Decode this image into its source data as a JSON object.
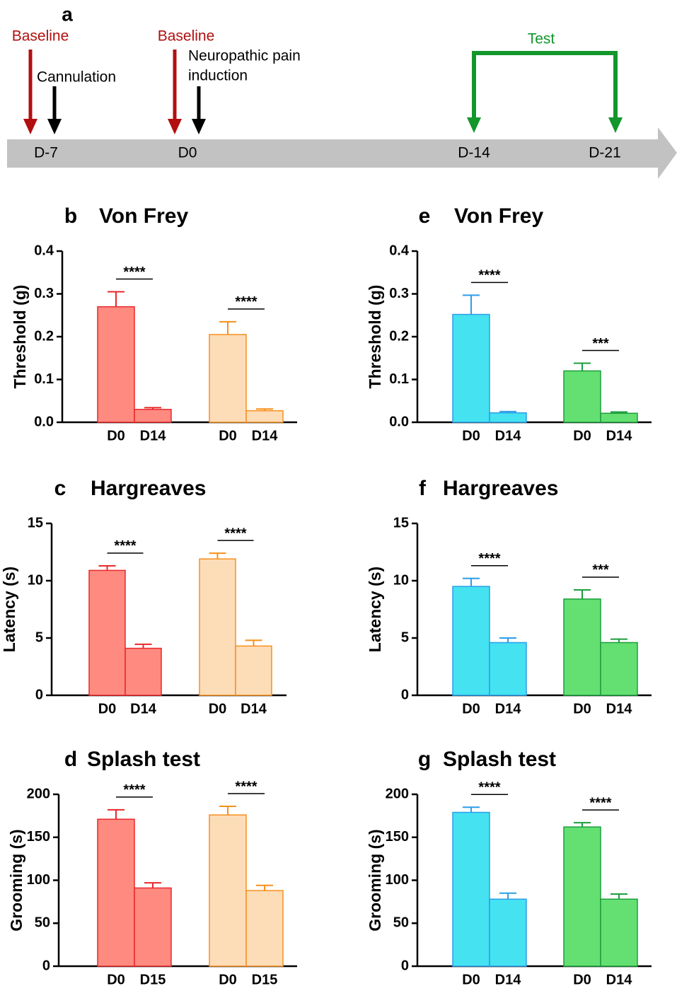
{
  "timeline": {
    "panel": "a",
    "days": [
      "D-7",
      "D0",
      "D-14",
      "D-21"
    ],
    "baseline_1": "Baseline",
    "cannulation": "Cannulation",
    "baseline_2": "Baseline",
    "induction": [
      "Neuropathic pain",
      "induction"
    ],
    "test": "Test"
  },
  "chart_data": [
    {
      "type": "bar",
      "panel": "b",
      "title": "Von Frey",
      "ylabel": "Threshold (g)",
      "categories": [
        "D0",
        "D14",
        "D0",
        "D14"
      ],
      "values": [
        0.27,
        0.03,
        0.205,
        0.027
      ],
      "errors": [
        0.035,
        0.004,
        0.03,
        0.004
      ],
      "colors": [
        "#ff8a80",
        "#ff8a80",
        "#fddcb8",
        "#fddcb8"
      ],
      "edge_colors": [
        "#e8282a",
        "#e8282a",
        "#f6901e",
        "#f6901e"
      ],
      "significance": [
        "****",
        "****"
      ],
      "ylim": [
        0,
        0.4
      ],
      "yticks": [
        {
          "value": 0,
          "label": "0.0"
        },
        0.1,
        0.2,
        0.3,
        0.4
      ]
    },
    {
      "type": "bar",
      "panel": "c",
      "title": "Hargreaves",
      "ylabel": "Latency (s)",
      "categories": [
        "D0",
        "D14",
        "D0",
        "D14"
      ],
      "values": [
        10.9,
        4.1,
        11.9,
        4.3
      ],
      "errors": [
        0.4,
        0.35,
        0.5,
        0.5
      ],
      "colors": [
        "#ff8a80",
        "#ff8a80",
        "#fddcb8",
        "#fddcb8"
      ],
      "edge_colors": [
        "#e8282a",
        "#e8282a",
        "#f6901e",
        "#f6901e"
      ],
      "significance": [
        "****",
        "****"
      ],
      "ylim": [
        0,
        15
      ],
      "yticks": [
        0,
        5,
        10,
        15
      ]
    },
    {
      "type": "bar",
      "panel": "d",
      "title": "Splash test",
      "ylabel": "Grooming (s)",
      "categories": [
        "D0",
        "D15",
        "D0",
        "D15"
      ],
      "values": [
        171,
        91,
        176,
        88
      ],
      "errors": [
        11,
        6,
        10,
        6
      ],
      "colors": [
        "#ff8a80",
        "#ff8a80",
        "#fddcb8",
        "#fddcb8"
      ],
      "edge_colors": [
        "#e8282a",
        "#e8282a",
        "#f6901e",
        "#f6901e"
      ],
      "significance": [
        "****",
        "****"
      ],
      "ylim": [
        0,
        200
      ],
      "yticks": [
        0,
        50,
        100,
        150,
        200
      ]
    },
    {
      "type": "bar",
      "panel": "e",
      "title": "Von Frey",
      "ylabel": "Threshold (g)",
      "categories": [
        "D0",
        "D14",
        "D0",
        "D14"
      ],
      "values": [
        0.252,
        0.022,
        0.12,
        0.021
      ],
      "errors": [
        0.045,
        0.003,
        0.018,
        0.003
      ],
      "colors": [
        "#45e2f2",
        "#45e2f2",
        "#64e072",
        "#64e072"
      ],
      "edge_colors": [
        "#2b9ee8",
        "#2b9ee8",
        "#1c9e3c",
        "#1c9e3c"
      ],
      "significance": [
        "****",
        "***"
      ],
      "ylim": [
        0,
        0.4
      ],
      "yticks": [
        {
          "value": 0,
          "label": "0.0"
        },
        0.1,
        0.2,
        0.3,
        0.4
      ]
    },
    {
      "type": "bar",
      "panel": "f",
      "title": "Hargreaves",
      "ylabel": "Latency (s)",
      "categories": [
        "D0",
        "D14",
        "D0",
        "D14"
      ],
      "values": [
        9.5,
        4.6,
        8.4,
        4.6
      ],
      "errors": [
        0.7,
        0.4,
        0.8,
        0.3
      ],
      "colors": [
        "#45e2f2",
        "#45e2f2",
        "#64e072",
        "#64e072"
      ],
      "edge_colors": [
        "#2b9ee8",
        "#2b9ee8",
        "#1c9e3c",
        "#1c9e3c"
      ],
      "significance": [
        "****",
        "***"
      ],
      "ylim": [
        0,
        15
      ],
      "yticks": [
        0,
        5,
        10,
        15
      ]
    },
    {
      "type": "bar",
      "panel": "g",
      "title": "Splash test",
      "ylabel": "Grooming (s)",
      "categories": [
        "D0",
        "D14",
        "D0",
        "D14"
      ],
      "values": [
        179,
        78,
        162,
        78
      ],
      "errors": [
        6,
        7,
        5,
        6
      ],
      "colors": [
        "#45e2f2",
        "#45e2f2",
        "#64e072",
        "#64e072"
      ],
      "edge_colors": [
        "#2b9ee8",
        "#2b9ee8",
        "#1c9e3c",
        "#1c9e3c"
      ],
      "significance": [
        "****",
        "****"
      ],
      "ylim": [
        0,
        200
      ],
      "yticks": [
        0,
        50,
        100,
        150,
        200
      ]
    }
  ]
}
